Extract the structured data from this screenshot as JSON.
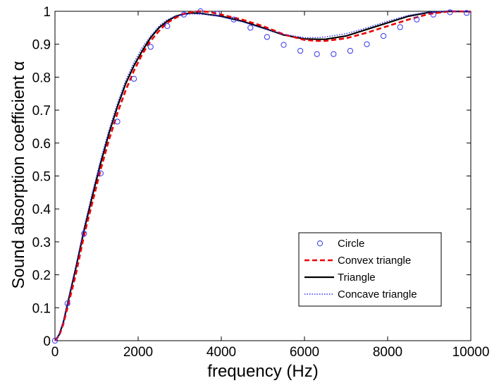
{
  "chart_data": {
    "type": "line",
    "xlabel": "frequency (Hz)",
    "ylabel": "Sound absorption coefficient α",
    "xlim": [
      0,
      10000
    ],
    "ylim": [
      0,
      1
    ],
    "x_ticks": [
      0,
      2000,
      4000,
      6000,
      8000,
      10000
    ],
    "y_ticks": [
      0,
      0.1,
      0.2,
      0.3,
      0.4,
      0.5,
      0.6,
      0.7,
      0.8,
      0.9,
      1
    ],
    "x_tick_labels": [
      "0",
      "2000",
      "4000",
      "6000",
      "8000",
      "10000"
    ],
    "y_tick_labels": [
      "0",
      "0.1",
      "0.2",
      "0.3",
      "0.4",
      "0.5",
      "0.6",
      "0.7",
      "0.8",
      "0.9",
      "1"
    ],
    "grid": false,
    "legend_position": "bottom-right",
    "series": [
      {
        "name": "Circle",
        "style": "markers",
        "marker": "circle",
        "color": "#3333ee",
        "x": [
          0,
          300,
          700,
          1100,
          1500,
          1900,
          2300,
          2700,
          3100,
          3500,
          3900,
          4300,
          4700,
          5100,
          5500,
          5900,
          6300,
          6700,
          7100,
          7500,
          7900,
          8300,
          8700,
          9100,
          9500,
          9900
        ],
        "y": [
          0,
          0.113,
          0.325,
          0.508,
          0.665,
          0.795,
          0.892,
          0.955,
          0.99,
          1.0,
          0.993,
          0.975,
          0.95,
          0.922,
          0.898,
          0.88,
          0.87,
          0.87,
          0.88,
          0.9,
          0.925,
          0.952,
          0.975,
          0.99,
          0.997,
          0.995
        ]
      },
      {
        "name": "Convex triangle",
        "style": "dashed",
        "color": "#ee0000",
        "x": [
          0,
          100,
          200,
          300,
          400,
          500,
          700,
          900,
          1100,
          1300,
          1500,
          1700,
          1900,
          2100,
          2300,
          2500,
          2700,
          2900,
          3100,
          3300,
          3500,
          3700,
          4000,
          4500,
          5000,
          5500,
          6000,
          6300,
          6500,
          7000,
          7500,
          8000,
          8500,
          9000,
          9500,
          10000
        ],
        "y": [
          0,
          0.015,
          0.05,
          0.1,
          0.15,
          0.2,
          0.32,
          0.42,
          0.52,
          0.61,
          0.69,
          0.76,
          0.82,
          0.87,
          0.91,
          0.94,
          0.965,
          0.98,
          0.992,
          0.998,
          1.0,
          0.998,
          0.99,
          0.975,
          0.955,
          0.93,
          0.913,
          0.91,
          0.91,
          0.918,
          0.935,
          0.955,
          0.975,
          0.992,
          1.0,
          0.999
        ]
      },
      {
        "name": "Triangle",
        "style": "solid",
        "color": "#000000",
        "x": [
          0,
          100,
          200,
          300,
          400,
          500,
          700,
          900,
          1100,
          1300,
          1500,
          1700,
          1900,
          2100,
          2300,
          2500,
          2700,
          2900,
          3100,
          3300,
          3500,
          3700,
          4000,
          4500,
          5000,
          5500,
          6000,
          6300,
          6500,
          7000,
          7500,
          8000,
          8500,
          9000,
          9500,
          10000
        ],
        "y": [
          0,
          0.018,
          0.055,
          0.11,
          0.165,
          0.22,
          0.335,
          0.44,
          0.54,
          0.63,
          0.71,
          0.78,
          0.835,
          0.88,
          0.92,
          0.95,
          0.97,
          0.985,
          0.992,
          0.995,
          0.994,
          0.99,
          0.985,
          0.97,
          0.95,
          0.928,
          0.916,
          0.915,
          0.915,
          0.925,
          0.945,
          0.965,
          0.985,
          0.997,
          1.0,
          0.999
        ]
      },
      {
        "name": "Concave triangle",
        "style": "dotted",
        "color": "#3333ee",
        "x": [
          0,
          100,
          200,
          300,
          400,
          500,
          700,
          900,
          1100,
          1300,
          1500,
          1700,
          1900,
          2100,
          2300,
          2500,
          2700,
          2900,
          3100,
          3300,
          3500,
          3700,
          4000,
          4500,
          5000,
          5500,
          6000,
          6300,
          6500,
          7000,
          7500,
          8000,
          8500,
          9000,
          9500,
          10000
        ],
        "y": [
          0,
          0.02,
          0.06,
          0.115,
          0.17,
          0.225,
          0.345,
          0.45,
          0.55,
          0.64,
          0.72,
          0.79,
          0.845,
          0.89,
          0.925,
          0.955,
          0.975,
          0.985,
          0.99,
          0.992,
          0.991,
          0.99,
          0.983,
          0.968,
          0.948,
          0.93,
          0.92,
          0.92,
          0.922,
          0.932,
          0.95,
          0.97,
          0.988,
          0.998,
          1.0,
          0.999
        ]
      }
    ]
  }
}
